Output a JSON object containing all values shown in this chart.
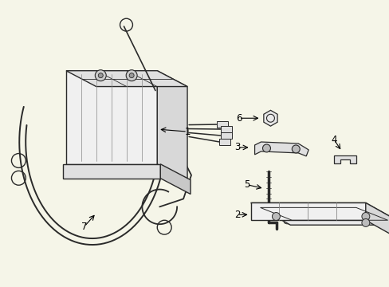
{
  "bg_color": "#f5f5e8",
  "line_color": "#2a2a2a",
  "label_color": "#000000",
  "label_fontsize": 8.5,
  "fig_width": 4.89,
  "fig_height": 3.6,
  "dpi": 100
}
